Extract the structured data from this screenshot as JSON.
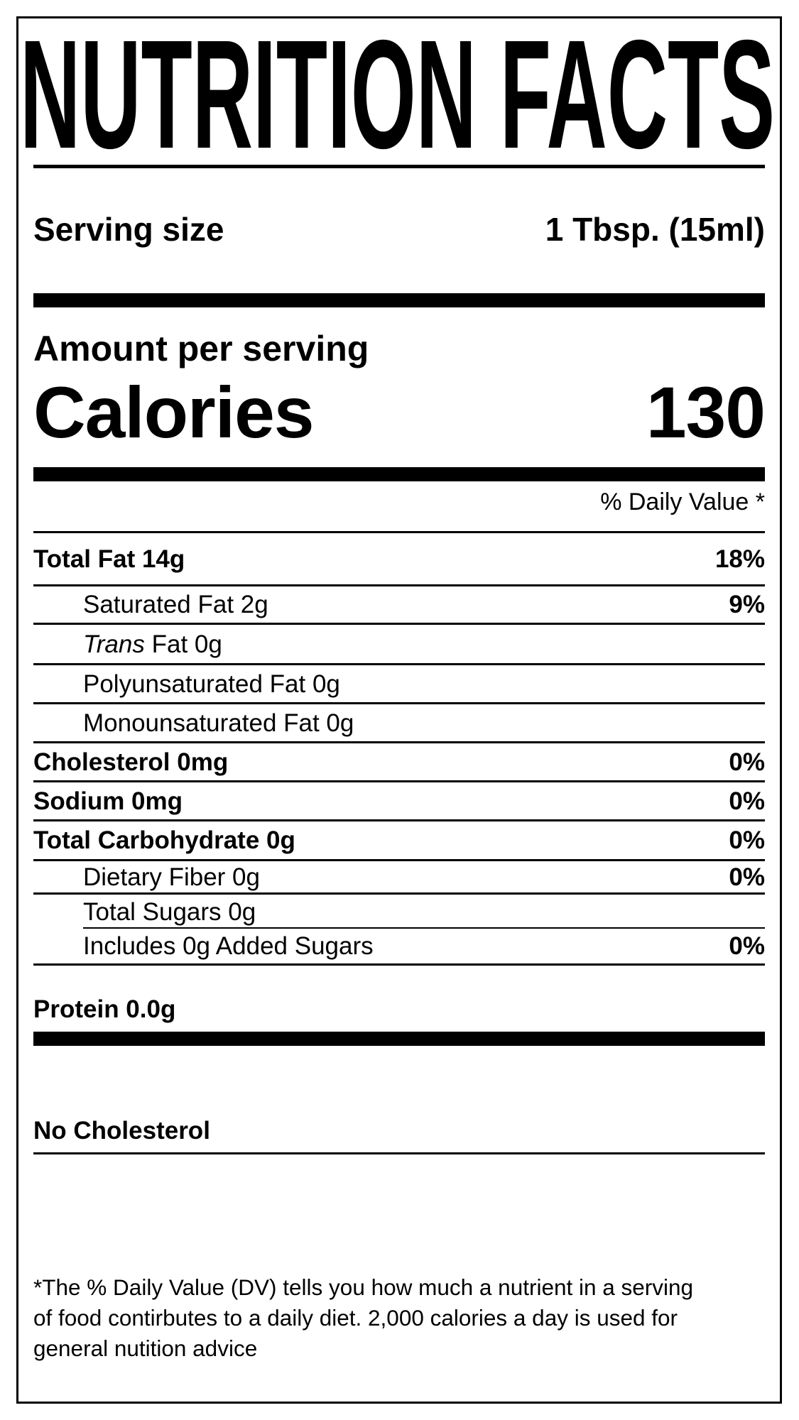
{
  "label": {
    "title": "NUTRITION FACTS",
    "serving": {
      "label": "Serving size",
      "value": "1 Tbsp. (15ml)"
    },
    "amount_per_serving": "Amount per serving",
    "calories": {
      "label": "Calories",
      "value": "130"
    },
    "daily_value_header": "% Daily Value *",
    "nutrients": [
      {
        "name": "Total Fat 14g",
        "pct": "18%"
      },
      {
        "name": "Saturated Fat 2g",
        "pct": "9%"
      },
      {
        "name_italic": "Trans",
        "name_rest": " Fat 0g",
        "pct": ""
      },
      {
        "name": "Polyunsaturated Fat 0g",
        "pct": ""
      },
      {
        "name": "Monounsaturated Fat 0g",
        "pct": ""
      },
      {
        "name": "Cholesterol 0mg",
        "pct": "0%"
      },
      {
        "name": "Sodium 0mg",
        "pct": "0%"
      },
      {
        "name": "Total Carbohydrate 0g",
        "pct": "0%"
      },
      {
        "name": "Dietary Fiber 0g",
        "pct": "0%"
      },
      {
        "name": "Total Sugars 0g",
        "pct": ""
      },
      {
        "name": "Includes 0g Added Sugars",
        "pct": "0%"
      }
    ],
    "protein": "Protein 0.0g",
    "claim": "No Cholesterol",
    "footnote_lines": [
      "*The % Daily Value (DV) tells you how much a nutrient in a serving",
      "of food contirbutes to a daily diet. 2,000 calories a day is used for",
      "general nutition advice"
    ],
    "colors": {
      "ink": "#000000",
      "paper": "#ffffff"
    }
  }
}
